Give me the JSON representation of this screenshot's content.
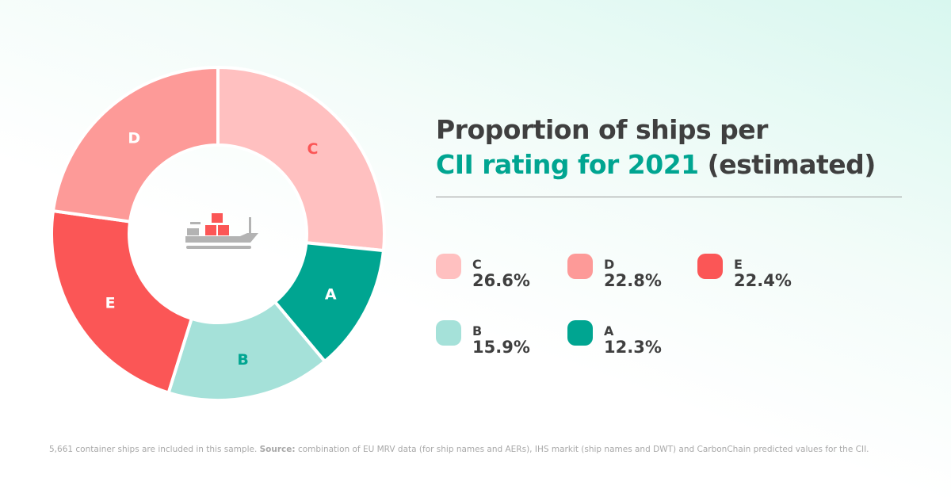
{
  "title": {
    "line1": "Proportion of ships per",
    "line2_highlight": "CII rating for 2021",
    "line2_rest": " (estimated)"
  },
  "chart_data": {
    "type": "pie",
    "donut": true,
    "title": "Proportion of ships per CII rating for 2021 (estimated)",
    "categories": [
      "C",
      "A",
      "B",
      "E",
      "D"
    ],
    "values": [
      26.6,
      12.3,
      15.9,
      22.4,
      22.8
    ],
    "colors": [
      "#ffc0c0",
      "#00a591",
      "#a5e1d9",
      "#fb5656",
      "#fd9a98"
    ],
    "label_colors": [
      "#fb5656",
      "#ffffff",
      "#00a591",
      "#ffffff",
      "#ffffff"
    ],
    "legend_position": "right",
    "center_icon": "container-ship-icon"
  },
  "legend": [
    {
      "label": "C",
      "value": "26.6%",
      "color": "#ffc0c0"
    },
    {
      "label": "D",
      "value": "22.8%",
      "color": "#fd9a98"
    },
    {
      "label": "E",
      "value": "22.4%",
      "color": "#fb5656"
    },
    {
      "label": "B",
      "value": "15.9%",
      "color": "#a5e1d9"
    },
    {
      "label": "A",
      "value": "12.3%",
      "color": "#00a591"
    }
  ],
  "footer": {
    "note": "5,661 container ships are included in this sample. ",
    "source_label": "Source:",
    "source_text": " combination of EU MRV data (for ship names and AERs), IHS markit (ship names and DWT) and CarbonChain predicted values for the CII."
  }
}
